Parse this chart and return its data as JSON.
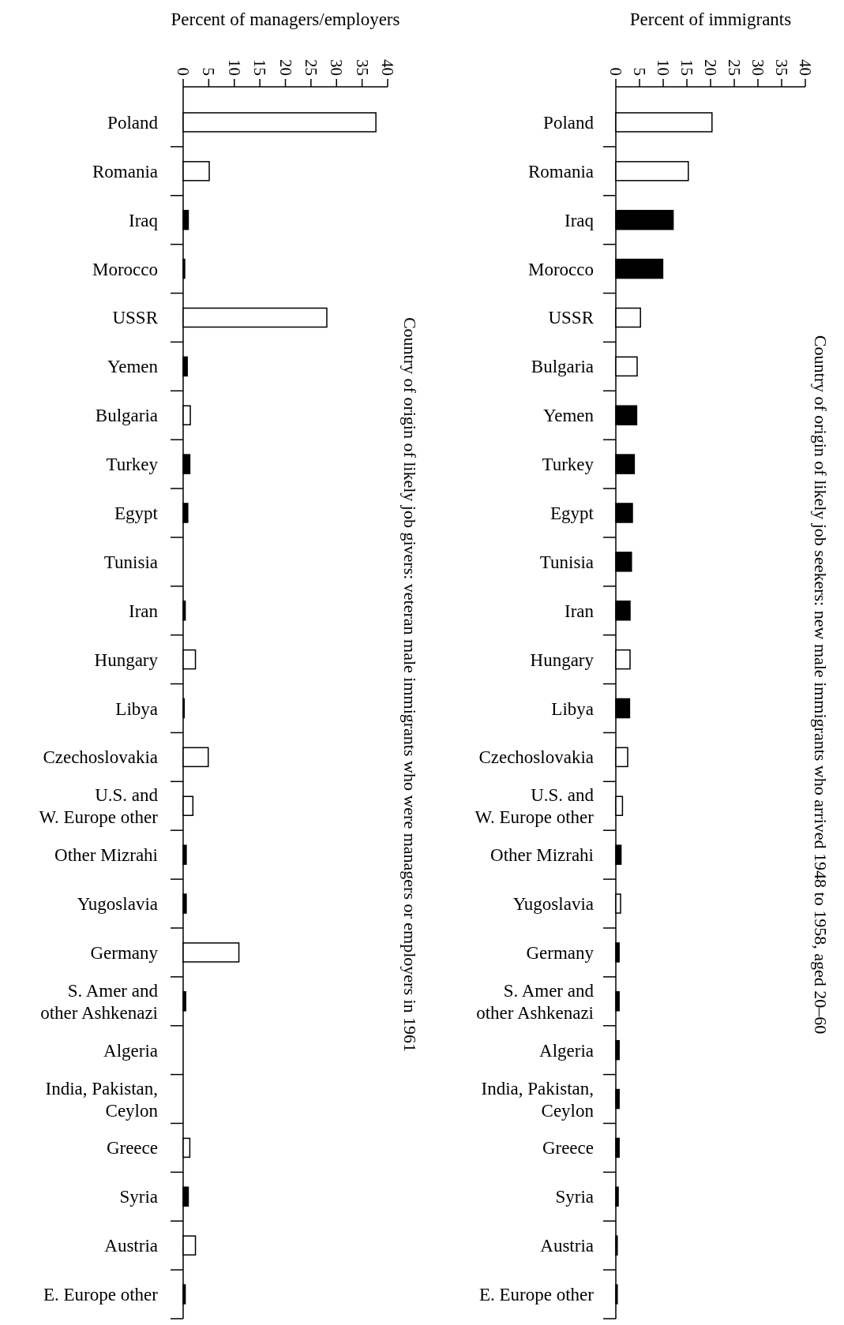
{
  "chart_data": [
    {
      "type": "bar",
      "orientation": "horizontal",
      "xlabel": "Percent of managers/employers",
      "ylabel": "Country of origin of likely job givers: veteran male immigrants who were managers or employers in 1961",
      "xlim": [
        0,
        40
      ],
      "xticks": [
        0,
        5,
        10,
        15,
        20,
        25,
        30,
        35,
        40
      ],
      "categories": [
        "Poland",
        "Romania",
        "Iraq",
        "Morocco",
        "USSR",
        "Yemen",
        "Bulgaria",
        "Turkey",
        "Egypt",
        "Tunisia",
        "Iran",
        "Hungary",
        "Libya",
        "Czechoslovakia",
        "U.S. and\nW. Europe other",
        "Other Mizrahi",
        "Yugoslavia",
        "Germany",
        "S. Amer and\nother Ashkenazi",
        "Algeria",
        "India, Pakistan,\nCeylon",
        "Greece",
        "Syria",
        "Austria",
        "E. Europe other"
      ],
      "values": [
        37.7,
        5.1,
        1,
        0.3,
        28.1,
        0.8,
        1.4,
        1.3,
        0.9,
        0,
        0.4,
        2.4,
        0.2,
        4.9,
        1.9,
        0.6,
        0.6,
        10.9,
        0.5,
        0,
        0,
        1.3,
        1,
        2.4,
        0.4
      ],
      "colors": [
        "#ffffff",
        "#ffffff",
        "#000000",
        "#000000",
        "#ffffff",
        "#000000",
        "#ffffff",
        "#000000",
        "#000000",
        "#000000",
        "#000000",
        "#ffffff",
        "#000000",
        "#ffffff",
        "#ffffff",
        "#000000",
        "#000000",
        "#ffffff",
        "#000000",
        "#000000",
        "#000000",
        "#ffffff",
        "#000000",
        "#ffffff",
        "#000000"
      ]
    },
    {
      "type": "bar",
      "orientation": "horizontal",
      "xlabel": "Percent of immigrants",
      "ylabel": "Country of origin of likely job seekers: new male immigrants who arrived 1948 to 1958, aged 20–60",
      "xlim": [
        0,
        40
      ],
      "xticks": [
        0,
        5,
        10,
        15,
        20,
        25,
        30,
        35,
        40
      ],
      "categories": [
        "Poland",
        "Romania",
        "Iraq",
        "Morocco",
        "USSR",
        "Bulgaria",
        "Yemen",
        "Turkey",
        "Egypt",
        "Tunisia",
        "Iran",
        "Hungary",
        "Libya",
        "Czechoslovakia",
        "U.S. and\nW. Europe other",
        "Other Mizrahi",
        "Yugoslavia",
        "Germany",
        "S. Amer and\nother Ashkenazi",
        "Algeria",
        "India, Pakistan,\nCeylon",
        "Greece",
        "Syria",
        "Austria",
        "E. Europe other"
      ],
      "values": [
        20.3,
        15.3,
        12.1,
        9.9,
        5.2,
        4.5,
        4.4,
        3.9,
        3.5,
        3.3,
        3,
        3,
        2.9,
        2.5,
        1.4,
        1.1,
        1,
        0.7,
        0.7,
        0.7,
        0.7,
        0.7,
        0.5,
        0.3,
        0.3
      ],
      "colors": [
        "#ffffff",
        "#ffffff",
        "#000000",
        "#000000",
        "#ffffff",
        "#ffffff",
        "#000000",
        "#000000",
        "#000000",
        "#000000",
        "#000000",
        "#ffffff",
        "#000000",
        "#ffffff",
        "#ffffff",
        "#000000",
        "#ffffff",
        "#000000",
        "#000000",
        "#000000",
        "#000000",
        "#000000",
        "#000000",
        "#000000",
        "#000000"
      ]
    }
  ]
}
